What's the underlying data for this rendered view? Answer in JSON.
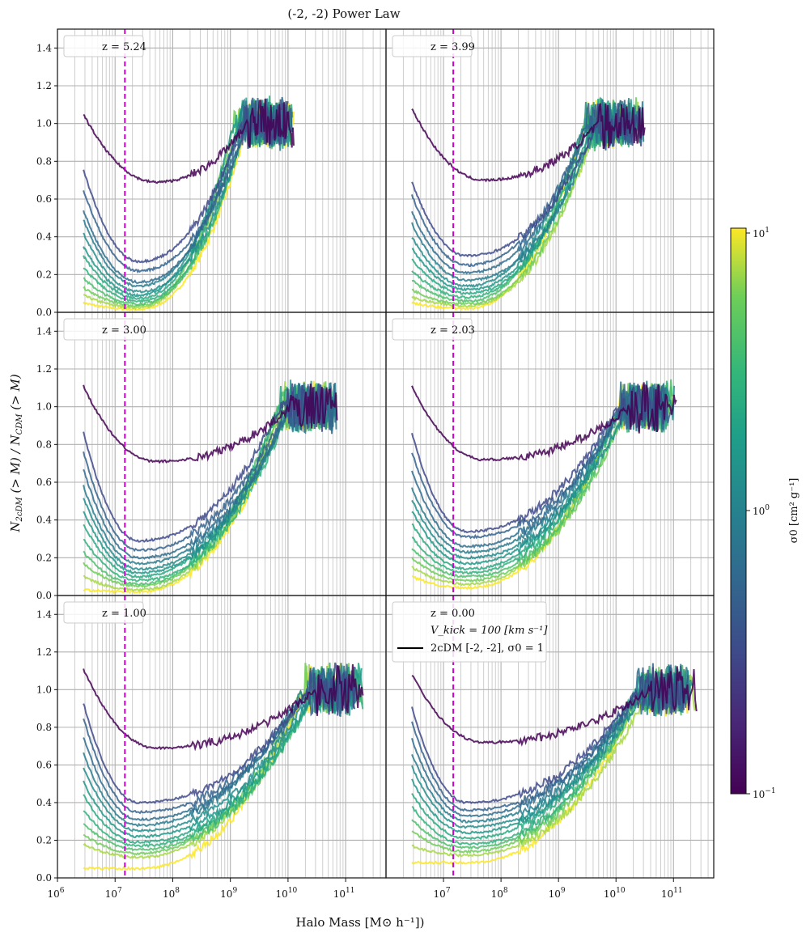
{
  "chart_data": {
    "type": "line",
    "title": "(-2, -2) Power Law",
    "xlabel": "Halo Mass [M⊙ h⁻¹])",
    "ylabel": "N2cDM (> M) / NCDM (> M)",
    "x_scale": "log",
    "xlim_log10": [
      6,
      11.7
    ],
    "ylim": [
      0,
      1.5
    ],
    "x_tick_labels": [
      {
        "exp": 6,
        "label": "10",
        "sup": "6"
      },
      {
        "exp": 7,
        "label": "10",
        "sup": "7"
      },
      {
        "exp": 8,
        "label": "10",
        "sup": "8"
      },
      {
        "exp": 9,
        "label": "10",
        "sup": "9"
      },
      {
        "exp": 10,
        "label": "10",
        "sup": "10"
      },
      {
        "exp": 11,
        "label": "10",
        "sup": "11"
      }
    ],
    "y_ticks": [
      0.0,
      0.2,
      0.4,
      0.6,
      0.8,
      1.0,
      1.2,
      1.4
    ],
    "y_tick_labels": [
      "0.0",
      "0.2",
      "0.4",
      "0.6",
      "0.8",
      "1.0",
      "1.2",
      "1.4"
    ],
    "reference_line": {
      "log10_mass": 7.17,
      "style": "dashed",
      "color": "#cc00cc"
    },
    "colorbar": {
      "label": "σ0 [cm² g⁻¹]",
      "scale": "log",
      "ticks": [
        {
          "label": "10",
          "sup": "1"
        },
        {
          "label": "10",
          "sup": "0"
        },
        {
          "label": "10",
          "sup": "−1"
        }
      ],
      "colormap": "viridis"
    },
    "series_sigma0_log10": [
      -1.0,
      -0.5,
      -0.3,
      -0.2,
      -0.05,
      0.1,
      0.2,
      0.35,
      0.45,
      0.6,
      0.75,
      0.85,
      1.0
    ],
    "panels": [
      {
        "label": "z = 5.24",
        "start_values": [
          1.05,
          0.76,
          0.65,
          0.54,
          0.49,
          0.42,
          0.35,
          0.3,
          0.24,
          0.18,
          0.13,
          0.09,
          0.05
        ],
        "dip_values": [
          0.69,
          0.27,
          0.22,
          0.16,
          0.14,
          0.11,
          0.09,
          0.075,
          0.06,
          0.045,
          0.035,
          0.025,
          0.015
        ],
        "end_log10_mass": 10.1
      },
      {
        "label": "z = 3.99",
        "start_values": [
          1.08,
          0.69,
          0.62,
          0.53,
          0.47,
          0.4,
          0.34,
          0.28,
          0.22,
          0.17,
          0.12,
          0.08,
          0.05
        ],
        "dip_values": [
          0.7,
          0.3,
          0.25,
          0.21,
          0.17,
          0.14,
          0.12,
          0.1,
          0.08,
          0.06,
          0.045,
          0.035,
          0.02
        ],
        "end_log10_mass": 10.5
      },
      {
        "label": "z = 3.00",
        "start_values": [
          1.11,
          0.87,
          0.76,
          0.67,
          0.58,
          0.52,
          0.45,
          0.38,
          0.3,
          0.23,
          0.17,
          0.1,
          0.03
        ],
        "dip_values": [
          0.71,
          0.29,
          0.24,
          0.2,
          0.17,
          0.14,
          0.12,
          0.1,
          0.08,
          0.06,
          0.05,
          0.03,
          0.02
        ],
        "end_log10_mass": 10.85
      },
      {
        "label": "z = 2.03",
        "start_values": [
          1.11,
          0.86,
          0.76,
          0.66,
          0.57,
          0.51,
          0.45,
          0.38,
          0.31,
          0.25,
          0.2,
          0.15,
          0.1
        ],
        "dip_values": [
          0.72,
          0.34,
          0.31,
          0.26,
          0.23,
          0.2,
          0.17,
          0.14,
          0.12,
          0.1,
          0.08,
          0.06,
          0.04
        ],
        "end_log10_mass": 11.05
      },
      {
        "label": "z = 1.00",
        "start_values": [
          1.11,
          0.93,
          0.85,
          0.75,
          0.66,
          0.59,
          0.51,
          0.44,
          0.36,
          0.29,
          0.23,
          0.18,
          0.05
        ],
        "dip_values": [
          0.69,
          0.4,
          0.35,
          0.31,
          0.28,
          0.25,
          0.22,
          0.19,
          0.17,
          0.15,
          0.13,
          0.11,
          0.05
        ],
        "end_log10_mass": 11.3
      },
      {
        "label": "z = 0.00",
        "start_values": [
          1.08,
          0.91,
          0.83,
          0.74,
          0.66,
          0.59,
          0.52,
          0.45,
          0.38,
          0.31,
          0.25,
          0.17,
          0.08
        ],
        "dip_values": [
          0.72,
          0.4,
          0.36,
          0.33,
          0.3,
          0.27,
          0.24,
          0.21,
          0.18,
          0.16,
          0.14,
          0.12,
          0.08
        ],
        "end_log10_mass": 11.4
      }
    ],
    "legend": {
      "placement": "top-left (bottom-right panel)",
      "entries": [
        "z = 0.00",
        "V_kick = 100 [km s⁻¹]",
        "2cDM [-2, -2], σ0 = 1"
      ]
    },
    "grid": true
  }
}
